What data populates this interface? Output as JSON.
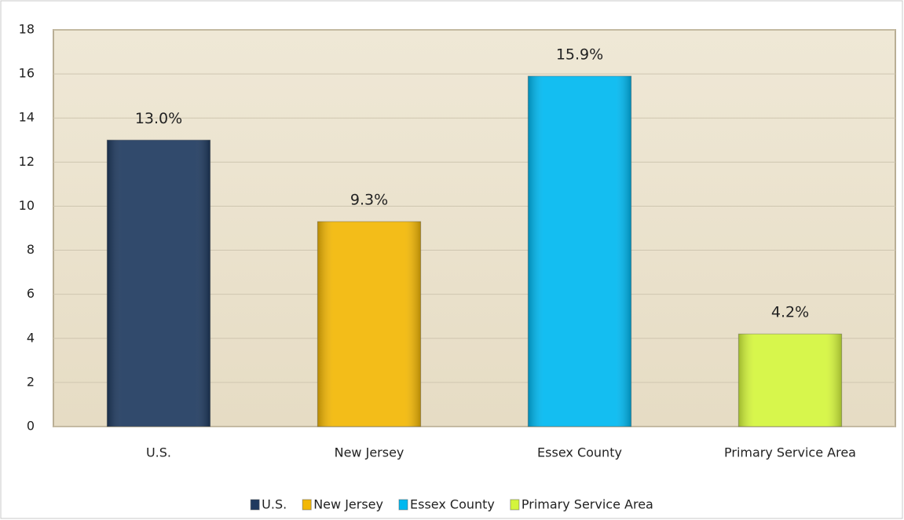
{
  "chart_data": {
    "type": "bar",
    "categories": [
      "U.S.",
      "New Jersey",
      "Essex County",
      "Primary Service Area"
    ],
    "values": [
      13.0,
      9.3,
      15.9,
      4.2
    ],
    "value_labels": [
      "13.0%",
      "9.3%",
      "15.9%",
      "4.2%"
    ],
    "colors": [
      "#1f3a5f",
      "#f2b705",
      "#00b8f0",
      "#d4f53c"
    ],
    "ylim": [
      0,
      18
    ],
    "yticks": [
      0,
      2,
      4,
      6,
      8,
      10,
      12,
      14,
      16,
      18
    ],
    "grid": true,
    "legend": "bottom"
  }
}
